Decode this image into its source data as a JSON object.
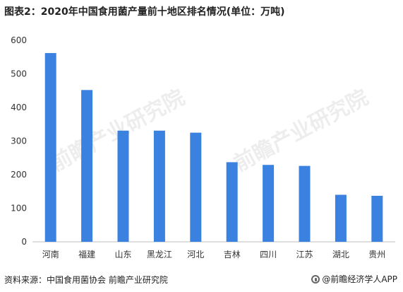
{
  "title": "图表2：2020年中国食用菌产量前十地区排名情况(单位：万吨)",
  "footer": {
    "source": "资料来源：中国食用菌协会 前瞻产业研究院",
    "brand": "@前瞻经济学人APP"
  },
  "watermarks": [
    "前瞻产业研究院",
    "前瞻产业研究院"
  ],
  "chart_data": {
    "type": "bar",
    "categories": [
      "河南",
      "福建",
      "山东",
      "黑龙江",
      "河北",
      "吉林",
      "四川",
      "江苏",
      "湖北",
      "贵州"
    ],
    "values": [
      562,
      452,
      331,
      331,
      325,
      237,
      229,
      226,
      140,
      137
    ],
    "ylim": [
      0,
      600
    ],
    "yticks": [
      0,
      100,
      200,
      300,
      400,
      500,
      600
    ],
    "bar_color": "#3b82e0",
    "grid": false
  }
}
